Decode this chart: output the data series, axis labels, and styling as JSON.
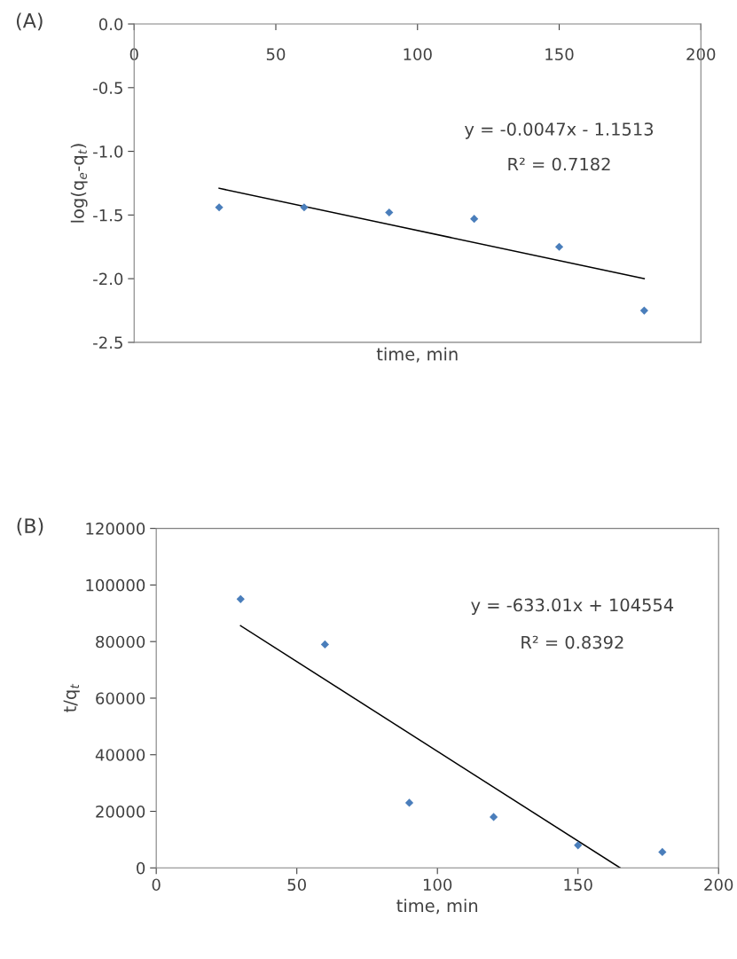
{
  "chart_data": [
    {
      "type": "scatter",
      "title": "(A)",
      "xlabel": "time, min",
      "ylabel": "log(q$_{e}$-q$_{t}$)",
      "x": [
        30,
        60,
        90,
        120,
        150,
        180
      ],
      "series": [
        {
          "color": "#4a7ebb",
          "marker": "diamond",
          "values": [
            -1.44,
            -1.44,
            -1.48,
            -1.53,
            -1.75,
            -2.25
          ]
        },
        {
          "type": "line",
          "color": "#000000",
          "marker": "none",
          "line_style": "solid",
          "x": [
            30,
            180
          ],
          "values": [
            -1.29,
            -2.0
          ]
        }
      ],
      "xlim": [
        0,
        200
      ],
      "xticks": [
        0,
        50,
        100,
        150,
        200
      ],
      "ylim": [
        -2.5,
        0
      ],
      "yticks": [
        {
          "value": -2.5,
          "label": "-2.5"
        },
        {
          "value": -2.0,
          "label": "-2.0"
        },
        {
          "value": -1.5,
          "label": "-1.5"
        },
        {
          "value": -1.0,
          "label": "-1.0"
        },
        {
          "value": -0.5,
          "label": "-0.5"
        },
        {
          "value": 0,
          "label": "0.0"
        }
      ],
      "annotations": [
        "y = -0.0047x - 1.1513",
        "R² = 0.7182"
      ],
      "grid": false,
      "legend": false
    },
    {
      "type": "scatter",
      "title": "(B)",
      "xlabel": "time, min",
      "ylabel": "t/q$_{t}$",
      "x": [
        30,
        60,
        90,
        120,
        150,
        180
      ],
      "series": [
        {
          "color": "#4a7ebb",
          "marker": "diamond",
          "values": [
            95000,
            79000,
            23000,
            18000,
            8000,
            5600
          ]
        },
        {
          "type": "line",
          "color": "#000000",
          "marker": "none",
          "line_style": "solid",
          "x": [
            30,
            165
          ],
          "values": [
            85600,
            0
          ]
        }
      ],
      "xlim": [
        0,
        200
      ],
      "xticks": [
        0,
        50,
        100,
        150,
        200
      ],
      "ylim": [
        0,
        120000
      ],
      "yticks": [
        0,
        20000,
        40000,
        60000,
        80000,
        100000,
        120000
      ],
      "annotations": [
        "y = -633.01x + 104554",
        "R² = 0.8392"
      ],
      "grid": false,
      "legend": false
    }
  ]
}
